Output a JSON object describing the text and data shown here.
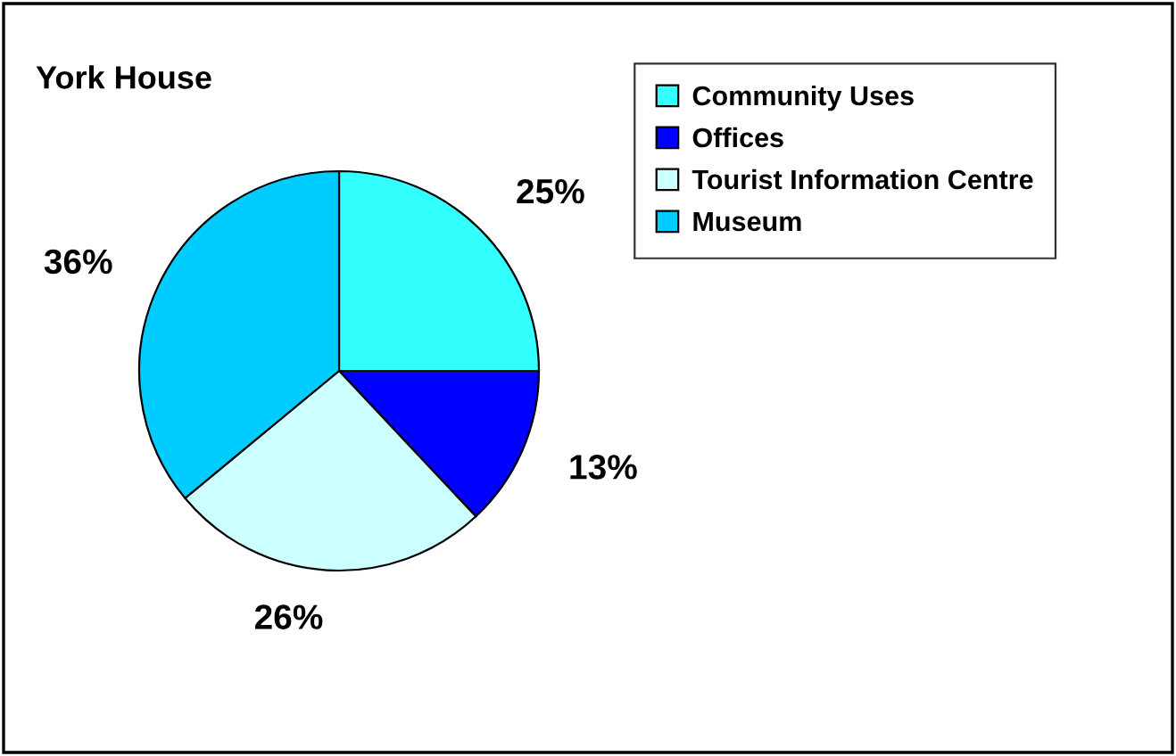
{
  "chart_data": {
    "type": "pie",
    "title": "York House",
    "categories": [
      "Community Uses",
      "Offices",
      "Tourist Information Centre",
      "Museum"
    ],
    "values": [
      25,
      13,
      26,
      36
    ],
    "colors": [
      "#33ffff",
      "#0000ff",
      "#ccffff",
      "#00ccff"
    ],
    "value_labels": [
      "25%",
      "13%",
      "26%",
      "36%"
    ],
    "legend": "top right"
  }
}
